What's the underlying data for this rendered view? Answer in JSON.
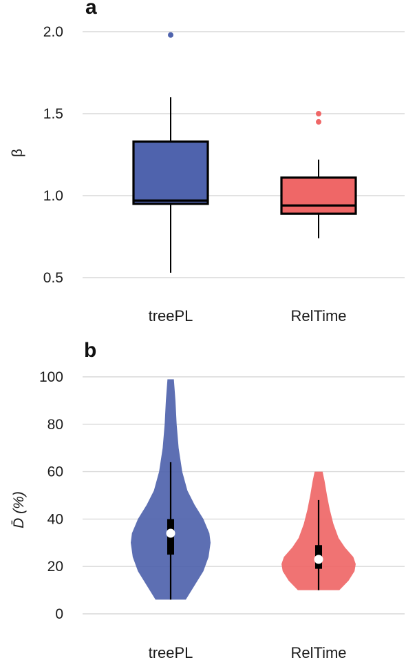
{
  "chart_data": [
    {
      "panel": "a",
      "type": "box",
      "title": "",
      "ylabel": "β",
      "ylim": [
        0.45,
        2.08
      ],
      "yticks": [
        "0.5",
        "1.0",
        "1.5",
        "2.0"
      ],
      "grid": true,
      "categories": [
        "treePL",
        "RelTime"
      ],
      "series": [
        {
          "category": "treePL",
          "color": "#4f63ad",
          "whisker_low": 0.53,
          "q1": 0.95,
          "median": 0.97,
          "q3": 1.33,
          "whisker_high": 1.6,
          "outliers": [
            1.98
          ]
        },
        {
          "category": "RelTime",
          "color": "#ef6767",
          "whisker_low": 0.74,
          "q1": 0.89,
          "median": 0.94,
          "q3": 1.11,
          "whisker_high": 1.22,
          "outliers": [
            1.45,
            1.5
          ]
        }
      ]
    },
    {
      "panel": "b",
      "type": "violin",
      "title": "",
      "ylabel": "D̄ (%)",
      "ylim": [
        0,
        100
      ],
      "yticks": [
        "0",
        "20",
        "40",
        "60",
        "80",
        "100"
      ],
      "grid": true,
      "categories": [
        "treePL",
        "RelTime"
      ],
      "series": [
        {
          "category": "treePL",
          "color": "#4f63ad",
          "min": 6,
          "whisker_low": 6,
          "q1": 25,
          "median": 34,
          "q3": 40,
          "whisker_high": 64,
          "max": 99,
          "density": [
            [
              6,
              0.38
            ],
            [
              12,
              0.6
            ],
            [
              18,
              0.82
            ],
            [
              24,
              0.95
            ],
            [
              30,
              1.0
            ],
            [
              34,
              0.97
            ],
            [
              40,
              0.82
            ],
            [
              46,
              0.6
            ],
            [
              52,
              0.42
            ],
            [
              60,
              0.29
            ],
            [
              70,
              0.2
            ],
            [
              80,
              0.15
            ],
            [
              90,
              0.12
            ],
            [
              99,
              0.08
            ]
          ]
        },
        {
          "category": "RelTime",
          "color": "#ef6767",
          "min": 10,
          "whisker_low": 10,
          "q1": 19,
          "median": 23,
          "q3": 29,
          "whisker_high": 48,
          "max": 60,
          "density": [
            [
              10,
              0.52
            ],
            [
              14,
              0.75
            ],
            [
              18,
              0.9
            ],
            [
              21,
              0.93
            ],
            [
              24,
              0.87
            ],
            [
              28,
              0.66
            ],
            [
              32,
              0.5
            ],
            [
              38,
              0.37
            ],
            [
              44,
              0.28
            ],
            [
              50,
              0.21
            ],
            [
              56,
              0.15
            ],
            [
              60,
              0.1
            ]
          ]
        }
      ]
    }
  ]
}
